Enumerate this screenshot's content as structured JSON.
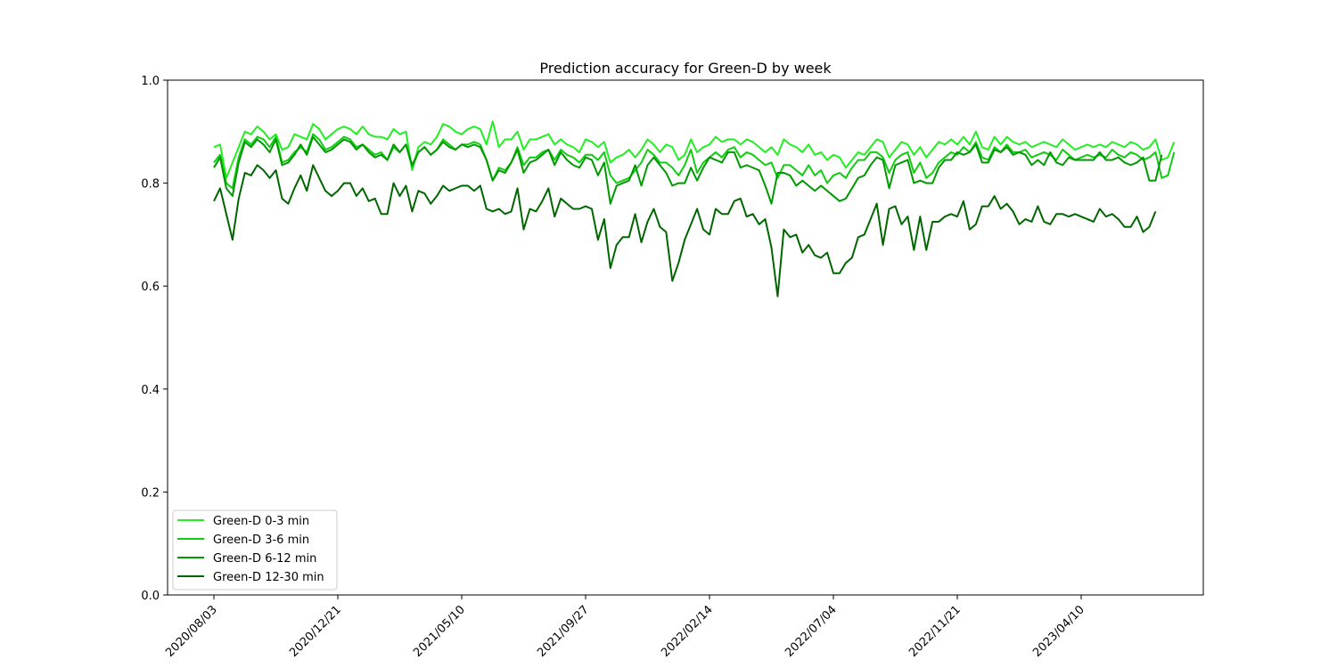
{
  "chart_data": {
    "type": "line",
    "title": "Prediction accuracy for Green-D by week",
    "xlabel": "",
    "ylabel": "",
    "ylim": [
      0,
      1.0
    ],
    "yticks": [
      "0.0",
      "0.2",
      "0.4",
      "0.6",
      "0.8",
      "1.0"
    ],
    "xtick_labels": [
      "2020/08/03",
      "2020/12/21",
      "2021/05/10",
      "2021/09/27",
      "2022/02/14",
      "2022/07/04",
      "2022/11/21",
      "2023/04/10"
    ],
    "x_start": "2020/08/03",
    "x_interval": "1 week",
    "grid": false,
    "legend_position": "lower-left",
    "series": [
      {
        "name": "Green-D 0-3 min",
        "color": "#22ee22",
        "values": [
          0.87,
          0.875,
          0.81,
          0.84,
          0.87,
          0.9,
          0.895,
          0.91,
          0.9,
          0.885,
          0.895,
          0.865,
          0.87,
          0.895,
          0.89,
          0.885,
          0.915,
          0.905,
          0.885,
          0.895,
          0.905,
          0.91,
          0.905,
          0.895,
          0.91,
          0.895,
          0.89,
          0.89,
          0.885,
          0.905,
          0.895,
          0.9,
          0.825,
          0.87,
          0.88,
          0.875,
          0.89,
          0.915,
          0.91,
          0.9,
          0.895,
          0.905,
          0.91,
          0.905,
          0.875,
          0.92,
          0.87,
          0.885,
          0.885,
          0.9,
          0.865,
          0.885,
          0.885,
          0.89,
          0.895,
          0.875,
          0.885,
          0.875,
          0.87,
          0.86,
          0.885,
          0.88,
          0.87,
          0.88,
          0.84,
          0.85,
          0.855,
          0.865,
          0.85,
          0.865,
          0.885,
          0.875,
          0.86,
          0.875,
          0.87,
          0.845,
          0.855,
          0.885,
          0.86,
          0.87,
          0.875,
          0.89,
          0.88,
          0.885,
          0.885,
          0.875,
          0.885,
          0.88,
          0.87,
          0.86,
          0.87,
          0.855,
          0.885,
          0.875,
          0.87,
          0.86,
          0.875,
          0.855,
          0.86,
          0.845,
          0.855,
          0.85,
          0.83,
          0.845,
          0.86,
          0.855,
          0.87,
          0.885,
          0.88,
          0.85,
          0.865,
          0.88,
          0.875,
          0.855,
          0.87,
          0.85,
          0.865,
          0.88,
          0.875,
          0.885,
          0.875,
          0.89,
          0.875,
          0.9,
          0.87,
          0.865,
          0.89,
          0.875,
          0.89,
          0.88,
          0.875,
          0.88,
          0.87,
          0.875,
          0.88,
          0.875,
          0.87,
          0.885,
          0.875,
          0.865,
          0.87,
          0.875,
          0.87,
          0.875,
          0.87,
          0.88,
          0.875,
          0.87,
          0.88,
          0.875,
          0.865,
          0.87,
          0.885,
          0.845,
          0.85,
          0.88
        ]
      },
      {
        "name": "Green-D 3-6 min",
        "color": "#11cc11",
        "values": [
          0.84,
          0.855,
          0.8,
          0.79,
          0.85,
          0.885,
          0.875,
          0.89,
          0.885,
          0.87,
          0.89,
          0.84,
          0.845,
          0.86,
          0.87,
          0.86,
          0.895,
          0.885,
          0.865,
          0.87,
          0.88,
          0.89,
          0.885,
          0.87,
          0.875,
          0.865,
          0.855,
          0.86,
          0.845,
          0.87,
          0.86,
          0.875,
          0.83,
          0.86,
          0.87,
          0.855,
          0.865,
          0.885,
          0.875,
          0.865,
          0.875,
          0.875,
          0.88,
          0.875,
          0.845,
          0.805,
          0.83,
          0.825,
          0.84,
          0.87,
          0.835,
          0.85,
          0.85,
          0.86,
          0.865,
          0.845,
          0.865,
          0.855,
          0.85,
          0.84,
          0.855,
          0.855,
          0.845,
          0.86,
          0.815,
          0.8,
          0.805,
          0.81,
          0.825,
          0.84,
          0.865,
          0.855,
          0.84,
          0.84,
          0.83,
          0.815,
          0.835,
          0.865,
          0.82,
          0.84,
          0.85,
          0.86,
          0.85,
          0.865,
          0.87,
          0.85,
          0.86,
          0.855,
          0.845,
          0.835,
          0.84,
          0.81,
          0.835,
          0.835,
          0.825,
          0.815,
          0.835,
          0.815,
          0.825,
          0.8,
          0.815,
          0.82,
          0.81,
          0.83,
          0.845,
          0.845,
          0.86,
          0.86,
          0.85,
          0.82,
          0.845,
          0.855,
          0.86,
          0.82,
          0.84,
          0.81,
          0.82,
          0.84,
          0.85,
          0.86,
          0.855,
          0.87,
          0.86,
          0.88,
          0.85,
          0.845,
          0.87,
          0.86,
          0.875,
          0.86,
          0.86,
          0.865,
          0.85,
          0.855,
          0.86,
          0.855,
          0.845,
          0.865,
          0.855,
          0.845,
          0.85,
          0.855,
          0.85,
          0.855,
          0.85,
          0.865,
          0.855,
          0.85,
          0.86,
          0.855,
          0.845,
          0.85,
          0.86,
          0.81,
          0.815,
          0.86
        ]
      },
      {
        "name": "Green-D 6-12 min",
        "color": "#009900",
        "values": [
          0.83,
          0.85,
          0.79,
          0.775,
          0.84,
          0.88,
          0.87,
          0.885,
          0.875,
          0.86,
          0.885,
          0.835,
          0.84,
          0.855,
          0.875,
          0.855,
          0.89,
          0.875,
          0.86,
          0.865,
          0.875,
          0.885,
          0.88,
          0.865,
          0.875,
          0.86,
          0.85,
          0.855,
          0.845,
          0.875,
          0.86,
          0.875,
          0.835,
          0.86,
          0.87,
          0.855,
          0.865,
          0.88,
          0.87,
          0.865,
          0.875,
          0.87,
          0.875,
          0.87,
          0.845,
          0.805,
          0.825,
          0.82,
          0.84,
          0.865,
          0.82,
          0.84,
          0.845,
          0.855,
          0.865,
          0.835,
          0.86,
          0.845,
          0.835,
          0.83,
          0.85,
          0.845,
          0.815,
          0.84,
          0.76,
          0.795,
          0.8,
          0.805,
          0.835,
          0.795,
          0.835,
          0.85,
          0.835,
          0.82,
          0.795,
          0.8,
          0.8,
          0.83,
          0.805,
          0.83,
          0.85,
          0.845,
          0.84,
          0.86,
          0.86,
          0.83,
          0.835,
          0.83,
          0.825,
          0.795,
          0.76,
          0.82,
          0.82,
          0.815,
          0.795,
          0.805,
          0.795,
          0.785,
          0.795,
          0.785,
          0.775,
          0.765,
          0.77,
          0.79,
          0.81,
          0.815,
          0.835,
          0.85,
          0.845,
          0.79,
          0.835,
          0.84,
          0.845,
          0.8,
          0.805,
          0.8,
          0.8,
          0.83,
          0.845,
          0.845,
          0.86,
          0.855,
          0.86,
          0.875,
          0.84,
          0.84,
          0.865,
          0.86,
          0.87,
          0.855,
          0.86,
          0.855,
          0.835,
          0.845,
          0.835,
          0.86,
          0.84,
          0.835,
          0.85,
          0.845,
          0.845,
          0.845,
          0.845,
          0.86,
          0.845,
          0.845,
          0.85,
          0.84,
          0.835,
          0.84,
          0.85,
          0.805,
          0.805,
          0.855
        ]
      },
      {
        "name": "Green-D 12-30 min",
        "color": "#006600",
        "values": [
          0.765,
          0.79,
          0.74,
          0.69,
          0.77,
          0.82,
          0.815,
          0.835,
          0.825,
          0.81,
          0.825,
          0.77,
          0.76,
          0.79,
          0.815,
          0.785,
          0.835,
          0.81,
          0.785,
          0.775,
          0.785,
          0.8,
          0.8,
          0.775,
          0.79,
          0.765,
          0.77,
          0.74,
          0.74,
          0.8,
          0.775,
          0.795,
          0.745,
          0.785,
          0.78,
          0.76,
          0.775,
          0.795,
          0.785,
          0.79,
          0.795,
          0.795,
          0.785,
          0.795,
          0.75,
          0.745,
          0.75,
          0.74,
          0.745,
          0.79,
          0.71,
          0.75,
          0.745,
          0.765,
          0.79,
          0.735,
          0.77,
          0.76,
          0.75,
          0.75,
          0.755,
          0.75,
          0.69,
          0.73,
          0.635,
          0.68,
          0.695,
          0.695,
          0.74,
          0.685,
          0.725,
          0.75,
          0.715,
          0.705,
          0.61,
          0.645,
          0.69,
          0.72,
          0.75,
          0.71,
          0.7,
          0.75,
          0.74,
          0.74,
          0.765,
          0.77,
          0.735,
          0.74,
          0.72,
          0.73,
          0.675,
          0.58,
          0.71,
          0.695,
          0.7,
          0.665,
          0.68,
          0.66,
          0.655,
          0.665,
          0.625,
          0.625,
          0.645,
          0.655,
          0.695,
          0.7,
          0.73,
          0.76,
          0.68,
          0.75,
          0.755,
          0.72,
          0.735,
          0.67,
          0.735,
          0.67,
          0.725,
          0.725,
          0.735,
          0.74,
          0.735,
          0.765,
          0.71,
          0.72,
          0.755,
          0.755,
          0.775,
          0.75,
          0.76,
          0.745,
          0.72,
          0.73,
          0.725,
          0.755,
          0.725,
          0.72,
          0.74,
          0.74,
          0.735,
          0.74,
          0.735,
          0.73,
          0.725,
          0.75,
          0.735,
          0.74,
          0.73,
          0.715,
          0.715,
          0.735,
          0.705,
          0.715,
          0.745
        ]
      }
    ]
  }
}
